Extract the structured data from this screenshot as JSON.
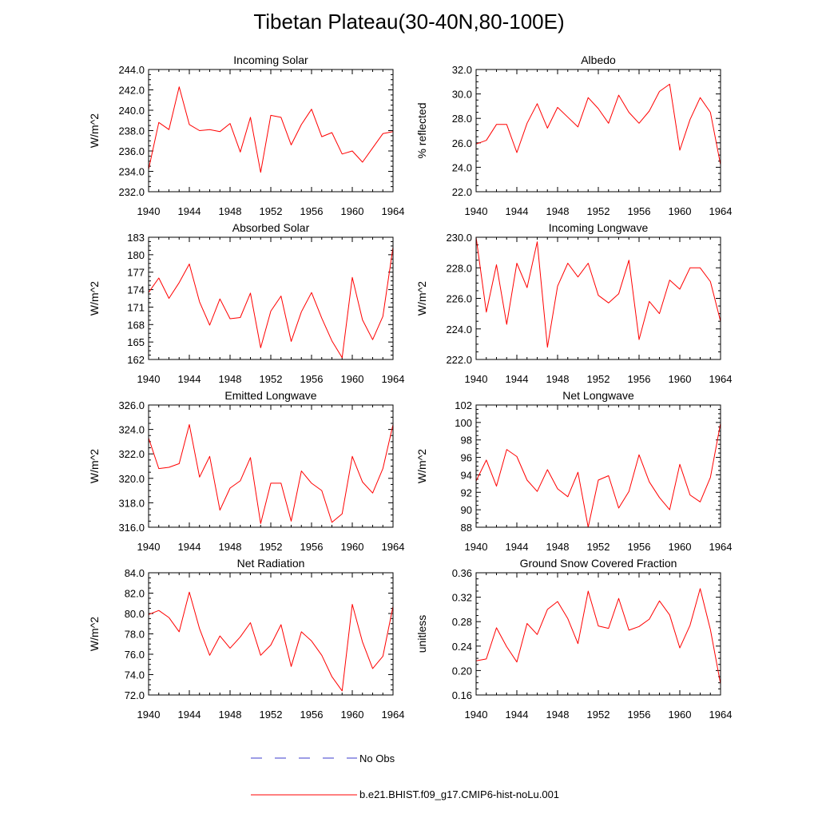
{
  "title": "Tibetan Plateau(30-40N,80-100E)",
  "legend": [
    {
      "label": "No Obs",
      "color": "#3b3bcc",
      "style": "dashed"
    },
    {
      "label": "b.e21.BHIST.f09_g17.CMIP6-hist-noLu.001",
      "color": "#ff0000",
      "style": "solid"
    }
  ],
  "x_ticks": [
    "1940",
    "1944",
    "1948",
    "1952",
    "1956",
    "1960",
    "1964"
  ],
  "chart_data": [
    {
      "type": "line",
      "title": "Incoming Solar",
      "ylabel": "W/m^2",
      "ylim": [
        232,
        244
      ],
      "yticks": [
        "232.0",
        "234.0",
        "236.0",
        "238.0",
        "240.0",
        "242.0",
        "244.0"
      ],
      "xlim": [
        1940,
        1964
      ],
      "x": [
        1940,
        1941,
        1942,
        1943,
        1944,
        1945,
        1946,
        1947,
        1948,
        1949,
        1950,
        1951,
        1952,
        1953,
        1954,
        1955,
        1956,
        1957,
        1958,
        1959,
        1960,
        1961,
        1962,
        1963,
        1964
      ],
      "series": [
        {
          "name": "b.e21.BHIST.f09_g17.CMIP6-hist-noLu.001",
          "values": [
            234.2,
            238.8,
            238.1,
            242.3,
            238.6,
            238.0,
            238.1,
            237.9,
            238.7,
            235.9,
            239.3,
            233.9,
            239.5,
            239.3,
            236.6,
            238.6,
            240.1,
            237.4,
            237.8,
            235.7,
            236.0,
            234.9,
            236.3,
            237.7,
            237.9
          ]
        }
      ]
    },
    {
      "type": "line",
      "title": "Albedo",
      "ylabel": "% reflected",
      "ylim": [
        22,
        32
      ],
      "yticks": [
        "22.0",
        "24.0",
        "26.0",
        "28.0",
        "30.0",
        "32.0"
      ],
      "xlim": [
        1940,
        1964
      ],
      "x": [
        1940,
        1941,
        1942,
        1943,
        1944,
        1945,
        1946,
        1947,
        1948,
        1949,
        1950,
        1951,
        1952,
        1953,
        1954,
        1955,
        1956,
        1957,
        1958,
        1959,
        1960,
        1961,
        1962,
        1963,
        1964
      ],
      "series": [
        {
          "name": "b.e21.BHIST.f09_g17.CMIP6-hist-noLu.001",
          "values": [
            25.9,
            26.2,
            27.5,
            27.5,
            25.2,
            27.6,
            29.2,
            27.2,
            28.9,
            28.1,
            27.3,
            29.7,
            28.8,
            27.6,
            29.9,
            28.5,
            27.6,
            28.6,
            30.2,
            30.8,
            25.4,
            27.9,
            29.7,
            28.5,
            24.2
          ]
        }
      ]
    },
    {
      "type": "line",
      "title": "Absorbed Solar",
      "ylabel": "W/m^2",
      "ylim": [
        162,
        183
      ],
      "yticks": [
        "162",
        "165",
        "168",
        "171",
        "174",
        "177",
        "180",
        "183"
      ],
      "xlim": [
        1940,
        1964
      ],
      "x": [
        1940,
        1941,
        1942,
        1943,
        1944,
        1945,
        1946,
        1947,
        1948,
        1949,
        1950,
        1951,
        1952,
        1953,
        1954,
        1955,
        1956,
        1957,
        1958,
        1959,
        1960,
        1961,
        1962,
        1963,
        1964
      ],
      "series": [
        {
          "name": "b.e21.BHIST.f09_g17.CMIP6-hist-noLu.001",
          "values": [
            173.5,
            176.0,
            172.5,
            175.2,
            178.4,
            171.9,
            167.9,
            172.4,
            169.0,
            169.2,
            173.4,
            164.0,
            170.3,
            172.9,
            165.1,
            170.2,
            173.5,
            169.1,
            165.2,
            162.3,
            176.1,
            168.8,
            165.4,
            169.4,
            181.3
          ]
        }
      ]
    },
    {
      "type": "line",
      "title": "Incoming Longwave",
      "ylabel": "W/m^2",
      "ylim": [
        222,
        230
      ],
      "yticks": [
        "222.0",
        "224.0",
        "226.0",
        "228.0",
        "230.0"
      ],
      "xlim": [
        1940,
        1964
      ],
      "x": [
        1940,
        1941,
        1942,
        1943,
        1944,
        1945,
        1946,
        1947,
        1948,
        1949,
        1950,
        1951,
        1952,
        1953,
        1954,
        1955,
        1956,
        1957,
        1958,
        1959,
        1960,
        1961,
        1962,
        1963,
        1964
      ],
      "series": [
        {
          "name": "b.e21.BHIST.f09_g17.CMIP6-hist-noLu.001",
          "values": [
            230.0,
            225.1,
            228.2,
            224.3,
            228.3,
            226.7,
            229.7,
            222.8,
            226.8,
            228.3,
            227.4,
            228.3,
            226.2,
            225.7,
            226.3,
            228.5,
            223.3,
            225.8,
            225.0,
            227.2,
            226.6,
            228.0,
            228.0,
            227.1,
            224.5
          ]
        }
      ]
    },
    {
      "type": "line",
      "title": "Emitted Longwave",
      "ylabel": "W/m^2",
      "ylim": [
        316,
        326
      ],
      "yticks": [
        "316.0",
        "318.0",
        "320.0",
        "322.0",
        "324.0",
        "326.0"
      ],
      "xlim": [
        1940,
        1964
      ],
      "x": [
        1940,
        1941,
        1942,
        1943,
        1944,
        1945,
        1946,
        1947,
        1948,
        1949,
        1950,
        1951,
        1952,
        1953,
        1954,
        1955,
        1956,
        1957,
        1958,
        1959,
        1960,
        1961,
        1962,
        1963,
        1964
      ],
      "series": [
        {
          "name": "b.e21.BHIST.f09_g17.CMIP6-hist-noLu.001",
          "values": [
            323.3,
            320.8,
            320.9,
            321.2,
            324.4,
            320.1,
            321.8,
            317.4,
            319.2,
            319.8,
            321.7,
            316.3,
            319.6,
            319.6,
            316.5,
            320.6,
            319.6,
            319.0,
            316.4,
            317.1,
            321.8,
            319.7,
            318.8,
            320.8,
            324.4
          ]
        }
      ]
    },
    {
      "type": "line",
      "title": "Net Longwave",
      "ylabel": "W/m^2",
      "ylim": [
        88,
        102
      ],
      "yticks": [
        "88",
        "90",
        "92",
        "94",
        "96",
        "98",
        "100",
        "102"
      ],
      "xlim": [
        1940,
        1964
      ],
      "x": [
        1940,
        1941,
        1942,
        1943,
        1944,
        1945,
        1946,
        1947,
        1948,
        1949,
        1950,
        1951,
        1952,
        1953,
        1954,
        1955,
        1956,
        1957,
        1958,
        1959,
        1960,
        1961,
        1962,
        1963,
        1964
      ],
      "series": [
        {
          "name": "b.e21.BHIST.f09_g17.CMIP6-hist-noLu.001",
          "values": [
            93.3,
            95.7,
            92.7,
            96.9,
            96.1,
            93.4,
            92.1,
            94.6,
            92.4,
            91.5,
            94.3,
            88.0,
            93.4,
            93.9,
            90.2,
            92.1,
            96.3,
            93.2,
            91.4,
            90.0,
            95.2,
            91.7,
            90.9,
            93.7,
            99.9
          ]
        }
      ]
    },
    {
      "type": "line",
      "title": "Net Radiation",
      "ylabel": "W/m^2",
      "ylim": [
        72,
        84
      ],
      "yticks": [
        "72.0",
        "74.0",
        "76.0",
        "78.0",
        "80.0",
        "82.0",
        "84.0"
      ],
      "xlim": [
        1940,
        1964
      ],
      "x": [
        1940,
        1941,
        1942,
        1943,
        1944,
        1945,
        1946,
        1947,
        1948,
        1949,
        1950,
        1951,
        1952,
        1953,
        1954,
        1955,
        1956,
        1957,
        1958,
        1959,
        1960,
        1961,
        1962,
        1963,
        1964
      ],
      "series": [
        {
          "name": "b.e21.BHIST.f09_g17.CMIP6-hist-noLu.001",
          "values": [
            79.9,
            80.3,
            79.6,
            78.2,
            82.1,
            78.5,
            75.9,
            77.8,
            76.6,
            77.7,
            79.1,
            75.9,
            76.9,
            78.9,
            74.8,
            78.2,
            77.3,
            75.9,
            73.8,
            72.4,
            80.9,
            77.2,
            74.6,
            75.8,
            80.7
          ]
        }
      ]
    },
    {
      "type": "line",
      "title": "Ground Snow Covered Fraction",
      "ylabel": "unitless",
      "ylim": [
        0.16,
        0.36
      ],
      "yticks": [
        "0.16",
        "0.20",
        "0.24",
        "0.28",
        "0.32",
        "0.36"
      ],
      "xlim": [
        1940,
        1964
      ],
      "x": [
        1940,
        1941,
        1942,
        1943,
        1944,
        1945,
        1946,
        1947,
        1948,
        1949,
        1950,
        1951,
        1952,
        1953,
        1954,
        1955,
        1956,
        1957,
        1958,
        1959,
        1960,
        1961,
        1962,
        1963,
        1964
      ],
      "series": [
        {
          "name": "b.e21.BHIST.f09_g17.CMIP6-hist-noLu.001",
          "values": [
            0.216,
            0.219,
            0.27,
            0.239,
            0.214,
            0.277,
            0.259,
            0.3,
            0.313,
            0.285,
            0.244,
            0.33,
            0.273,
            0.269,
            0.318,
            0.266,
            0.272,
            0.284,
            0.314,
            0.291,
            0.237,
            0.274,
            0.334,
            0.267,
            0.178
          ]
        }
      ]
    }
  ]
}
